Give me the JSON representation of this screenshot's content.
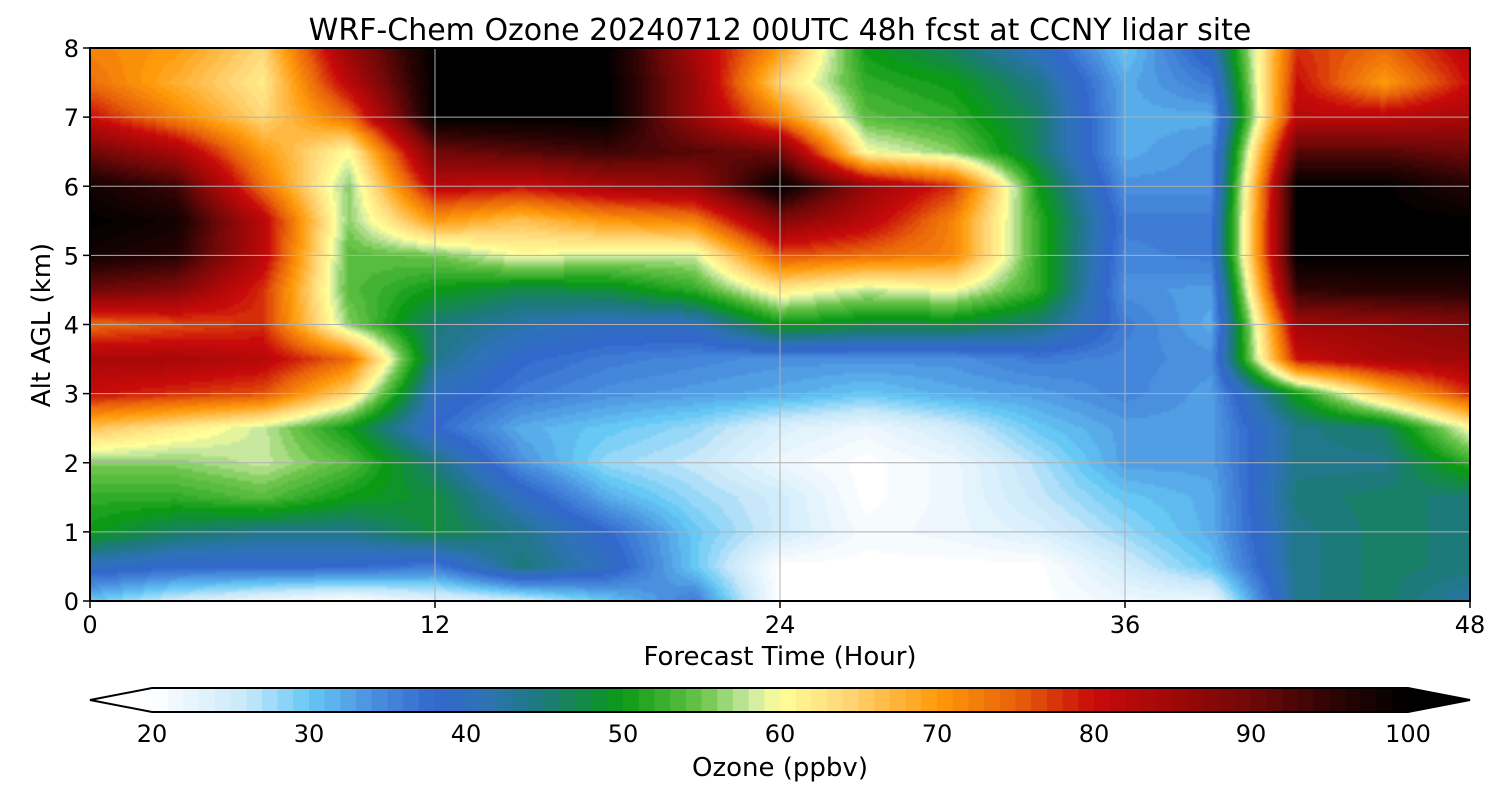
{
  "chart_data": {
    "type": "heatmap",
    "title": "WRF-Chem Ozone  20240712 00UTC 48h fcst at CCNY lidar site",
    "xlabel": "Forecast Time (Hour)",
    "ylabel": "Alt AGL (km)",
    "xlim": [
      0,
      48
    ],
    "ylim": [
      0,
      8
    ],
    "xticks": [
      "0",
      "12",
      "24",
      "36",
      "48"
    ],
    "yticks": [
      "0",
      "1",
      "2",
      "3",
      "4",
      "5",
      "6",
      "7",
      "8"
    ],
    "grid": true,
    "x": [
      0,
      3,
      6,
      9,
      12,
      15,
      18,
      21,
      24,
      27,
      30,
      33,
      36,
      39,
      42,
      45,
      48
    ],
    "y": [
      0,
      0.5,
      1,
      1.5,
      2,
      2.5,
      3,
      3.5,
      4,
      4.5,
      5,
      5.5,
      6,
      6.5,
      7,
      7.5,
      8
    ],
    "z": [
      [
        30,
        25,
        22,
        20,
        23,
        25,
        30,
        36,
        20,
        20,
        20,
        20,
        22,
        22,
        44,
        46,
        42
      ],
      [
        40,
        38,
        38,
        38,
        36,
        45,
        40,
        30,
        20,
        20,
        20,
        20,
        25,
        30,
        44,
        46,
        45
      ],
      [
        50,
        46,
        44,
        44,
        48,
        44,
        38,
        30,
        25,
        21,
        22,
        24,
        28,
        32,
        44,
        46,
        45
      ],
      [
        52,
        52,
        54,
        50,
        48,
        40,
        32,
        28,
        25,
        20,
        22,
        26,
        30,
        32,
        45,
        46,
        45
      ],
      [
        56,
        56,
        58,
        54,
        45,
        34,
        28,
        26,
        22,
        20,
        22,
        27,
        33,
        33,
        44,
        44,
        52
      ],
      [
        66,
        62,
        58,
        50,
        38,
        32,
        30,
        28,
        24,
        22,
        25,
        30,
        33,
        33,
        44,
        46,
        60
      ],
      [
        80,
        78,
        76,
        64,
        40,
        36,
        34,
        33,
        32,
        30,
        32,
        33,
        35,
        33,
        50,
        66,
        78
      ],
      [
        84,
        84,
        82,
        74,
        44,
        38,
        36,
        35,
        34,
        34,
        34,
        36,
        35,
        34,
        80,
        84,
        85
      ],
      [
        74,
        76,
        78,
        56,
        45,
        42,
        40,
        40,
        50,
        48,
        48,
        45,
        36,
        32,
        85,
        86,
        88
      ],
      [
        90,
        88,
        78,
        54,
        50,
        47,
        48,
        52,
        62,
        58,
        60,
        52,
        34,
        33,
        95,
        96,
        96
      ],
      [
        98,
        96,
        82,
        54,
        55,
        60,
        58,
        58,
        76,
        74,
        72,
        52,
        35,
        36,
        100,
        100,
        100
      ],
      [
        100,
        98,
        82,
        56,
        70,
        66,
        70,
        72,
        88,
        82,
        72,
        52,
        36,
        36,
        100,
        100,
        100
      ],
      [
        98,
        94,
        74,
        56,
        82,
        80,
        84,
        86,
        100,
        86,
        78,
        50,
        34,
        34,
        100,
        100,
        96
      ],
      [
        90,
        84,
        70,
        60,
        90,
        92,
        94,
        92,
        90,
        60,
        56,
        46,
        32,
        34,
        92,
        92,
        90
      ],
      [
        80,
        72,
        64,
        74,
        100,
        100,
        100,
        86,
        72,
        54,
        52,
        46,
        32,
        32,
        82,
        82,
        84
      ],
      [
        74,
        68,
        62,
        82,
        100,
        100,
        100,
        86,
        64,
        52,
        50,
        44,
        32,
        36,
        80,
        70,
        80
      ],
      [
        72,
        70,
        64,
        86,
        100,
        100,
        100,
        84,
        70,
        50,
        46,
        40,
        30,
        40,
        78,
        74,
        82
      ]
    ],
    "colorbar": {
      "label": "Ozone  (ppbv)",
      "min": 20,
      "max": 100,
      "ticks": [
        "20",
        "30",
        "40",
        "50",
        "60",
        "70",
        "80",
        "90",
        "100"
      ],
      "extend": "both"
    },
    "colormap": [
      [
        20,
        "#ffffff"
      ],
      [
        26,
        "#c8e8fa"
      ],
      [
        30,
        "#66c8f5"
      ],
      [
        34,
        "#4a90df"
      ],
      [
        38,
        "#3268cc"
      ],
      [
        41,
        "#2e72b8"
      ],
      [
        45,
        "#1c7a7a"
      ],
      [
        50,
        "#0a9a14"
      ],
      [
        55,
        "#6ac44a"
      ],
      [
        58,
        "#c8e8a0"
      ],
      [
        60,
        "#ffff9a"
      ],
      [
        64,
        "#ffd87a"
      ],
      [
        70,
        "#ff9a0a"
      ],
      [
        75,
        "#e8620a"
      ],
      [
        80,
        "#c80a0a"
      ],
      [
        85,
        "#a00808"
      ],
      [
        90,
        "#700808"
      ],
      [
        95,
        "#300404"
      ],
      [
        100,
        "#000000"
      ]
    ]
  }
}
